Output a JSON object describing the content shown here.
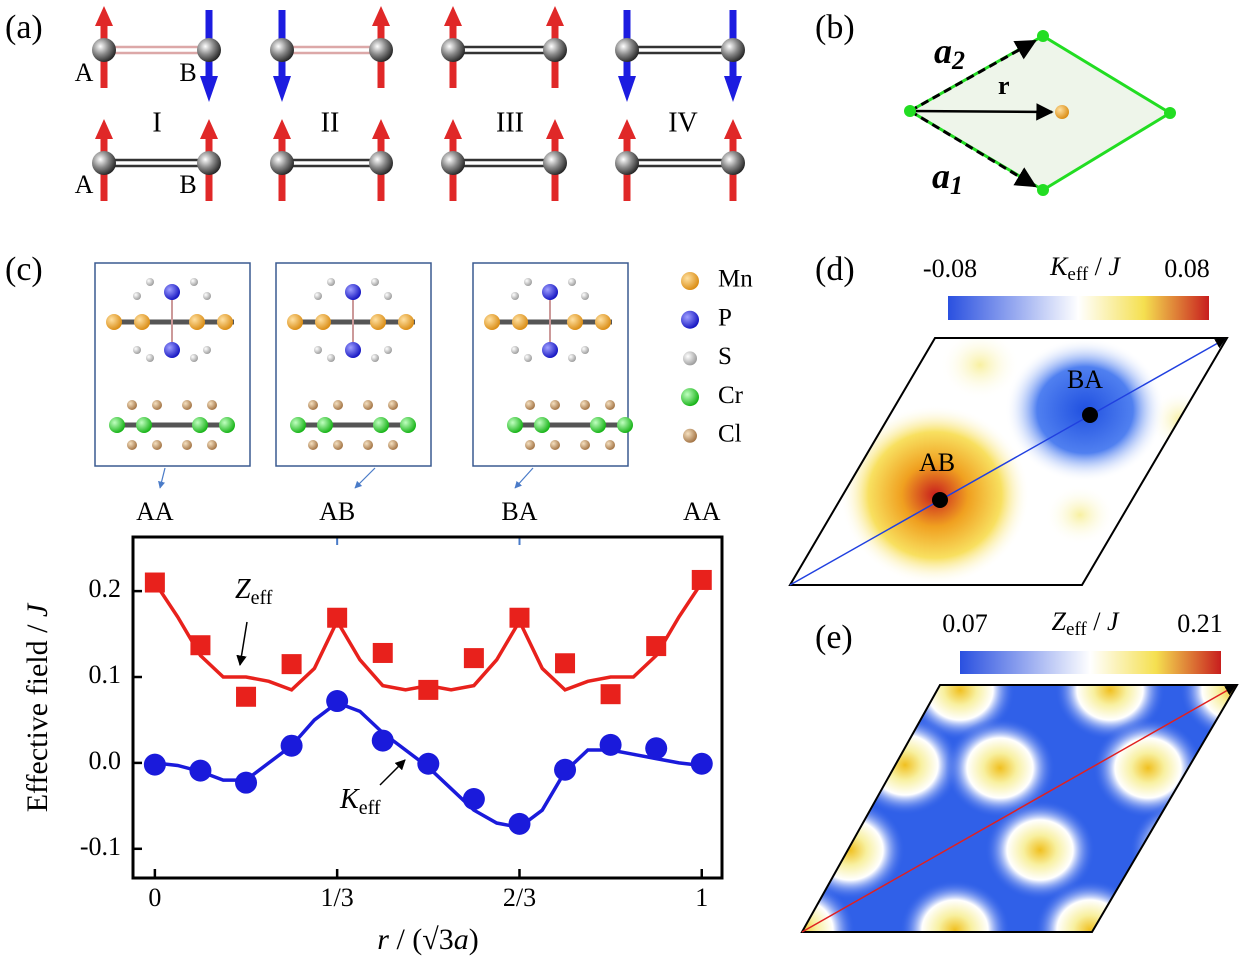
{
  "panel_labels": [
    "(a)",
    "(b)",
    "(c)",
    "(d)",
    "(e)"
  ],
  "panel_a": {
    "site_labels": [
      "A",
      "B",
      "A",
      "B"
    ],
    "configs": [
      "I",
      "II",
      "III",
      "IV"
    ]
  },
  "panel_b": {
    "vectors": [
      {
        "main": "a",
        "sub": "2"
      },
      {
        "main": "r"
      },
      {
        "main": "a",
        "sub": "1"
      }
    ]
  },
  "panel_c_structures": {
    "legend": [
      "Mn",
      "P",
      "S",
      "Cr",
      "Cl"
    ]
  },
  "chart_data": {
    "type": "scatter",
    "stackings": [
      "AA",
      "AB",
      "BA",
      "AA"
    ],
    "x": [
      0,
      0.0833,
      0.1667,
      0.25,
      0.3333,
      0.4167,
      0.5,
      0.5833,
      0.6667,
      0.75,
      0.8333,
      0.9167,
      1
    ],
    "series": [
      {
        "color": "#e8211c",
        "marker": "square",
        "values": [
          0.21,
          0.137,
          0.077,
          0.115,
          0.169,
          0.128,
          0.085,
          0.122,
          0.169,
          0.116,
          0.08,
          0.136,
          0.213
        ]
      },
      {
        "color": "#1a1adb",
        "marker": "circle",
        "values": [
          -0.002,
          -0.009,
          -0.023,
          0.02,
          0.072,
          0.026,
          -0.001,
          -0.042,
          -0.071,
          -0.008,
          0.021,
          0.017,
          -0.001
        ]
      }
    ],
    "fit_x": [
      0,
      0.0417,
      0.0833,
      0.125,
      0.1667,
      0.2083,
      0.25,
      0.2917,
      0.3333,
      0.375,
      0.4167,
      0.4583,
      0.5,
      0.5417,
      0.5833,
      0.625,
      0.6667,
      0.7083,
      0.75,
      0.7917,
      0.8333,
      0.875,
      0.9167,
      0.9583,
      1
    ],
    "fits": [
      {
        "color": "#e8211c",
        "values": [
          0.21,
          0.17,
          0.125,
          0.1,
          0.1,
          0.095,
          0.085,
          0.11,
          0.165,
          0.12,
          0.09,
          0.085,
          0.09,
          0.085,
          0.09,
          0.12,
          0.165,
          0.11,
          0.085,
          0.095,
          0.1,
          0.1,
          0.125,
          0.17,
          0.21
        ]
      },
      {
        "color": "#1a1adb",
        "values": [
          0,
          -0.003,
          -0.01,
          -0.02,
          -0.02,
          0,
          0.02,
          0.05,
          0.07,
          0.06,
          0.035,
          0.015,
          -0.005,
          -0.03,
          -0.055,
          -0.07,
          -0.075,
          -0.055,
          -0.01,
          0.015,
          0.015,
          0.01,
          0.005,
          0,
          -0.003
        ]
      }
    ],
    "annotations": [
      {
        "main": "Z",
        "sub": "eff"
      },
      {
        "main": "K",
        "sub": "eff"
      }
    ],
    "ylabel": [
      "Effective field / ",
      "J"
    ],
    "xlabel": [
      "r",
      " / (√3",
      "a",
      ")"
    ],
    "xlim": [
      -0.04,
      1.037
    ],
    "xticks": [
      {
        "value": 0,
        "label": "0"
      },
      {
        "value": 0.3333,
        "label": "1/3"
      },
      {
        "value": 0.6667,
        "label": "2/3"
      },
      {
        "value": 1,
        "label": "1"
      }
    ],
    "ylim": [
      -0.134,
      0.263
    ],
    "yticks": [
      -0.1,
      {
        "value": 0,
        "label": "0.0"
      },
      0.1,
      0.2
    ]
  },
  "panel_d": {
    "colorbar": {
      "min": -0.08,
      "max": 0.08,
      "title": [
        "K",
        "eff",
        " / ",
        "J"
      ]
    },
    "points": [
      "BA",
      "AB"
    ]
  },
  "panel_e": {
    "colorbar": {
      "min": 0.07,
      "max": 0.21,
      "title": [
        "Z",
        "eff",
        " / ",
        "J"
      ]
    }
  }
}
